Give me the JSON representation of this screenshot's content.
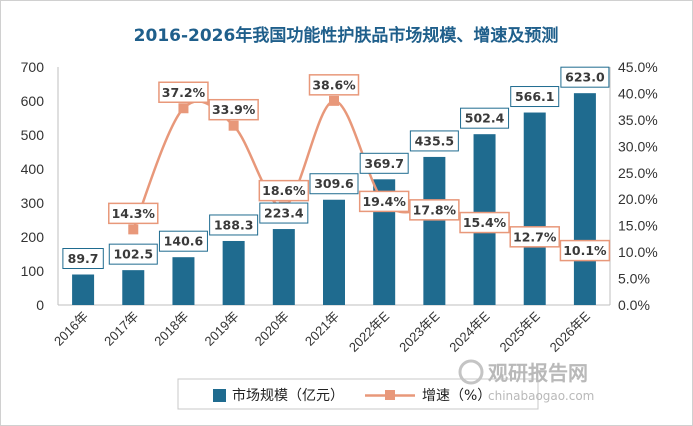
{
  "chart_data": {
    "type": "bar",
    "title": "2016-2026年我国功能性护肤品市场规模、增速及预测",
    "categories": [
      "2016年",
      "2017年",
      "2018年",
      "2019年",
      "2020年",
      "2021年",
      "2022年E",
      "2023年E",
      "2024年E",
      "2025年E",
      "2026年E"
    ],
    "series": [
      {
        "name": "市场规模（亿元）",
        "type": "bar",
        "axis": "left",
        "color": "#1f6b8f",
        "values": [
          89.7,
          102.5,
          140.6,
          188.3,
          223.4,
          309.6,
          369.7,
          435.5,
          502.4,
          566.1,
          623.0
        ],
        "labels": [
          "89.7",
          "102.5",
          "140.6",
          "188.3",
          "223.4",
          "309.6",
          "369.7",
          "435.5",
          "502.4",
          "566.1",
          "623.0"
        ]
      },
      {
        "name": "增速（%）",
        "type": "line",
        "smooth": true,
        "axis": "right",
        "color": "#e8987a",
        "values": [
          null,
          14.3,
          37.2,
          33.9,
          18.6,
          38.6,
          19.4,
          17.8,
          15.4,
          12.7,
          10.1
        ],
        "labels": [
          "",
          "14.3%",
          "37.2%",
          "33.9%",
          "18.6%",
          "38.6%",
          "19.4%",
          "17.8%",
          "15.4%",
          "12.7%",
          "10.1%"
        ]
      }
    ],
    "y_left": {
      "min": 0,
      "max": 700,
      "step": 100,
      "ticks": [
        "0",
        "100",
        "200",
        "300",
        "400",
        "500",
        "600",
        "700"
      ]
    },
    "y_right": {
      "min": 0,
      "max": 45,
      "step": 5,
      "ticks": [
        "0.0%",
        "5.0%",
        "10.0%",
        "15.0%",
        "20.0%",
        "25.0%",
        "30.0%",
        "35.0%",
        "40.0%",
        "45.0%"
      ]
    },
    "legend": {
      "placement": "bottom",
      "items": [
        "市场规模（亿元）",
        "增速（%）"
      ]
    },
    "grid": false
  },
  "watermark": {
    "text": "观研报告网",
    "url": "chinabaogao.com"
  }
}
